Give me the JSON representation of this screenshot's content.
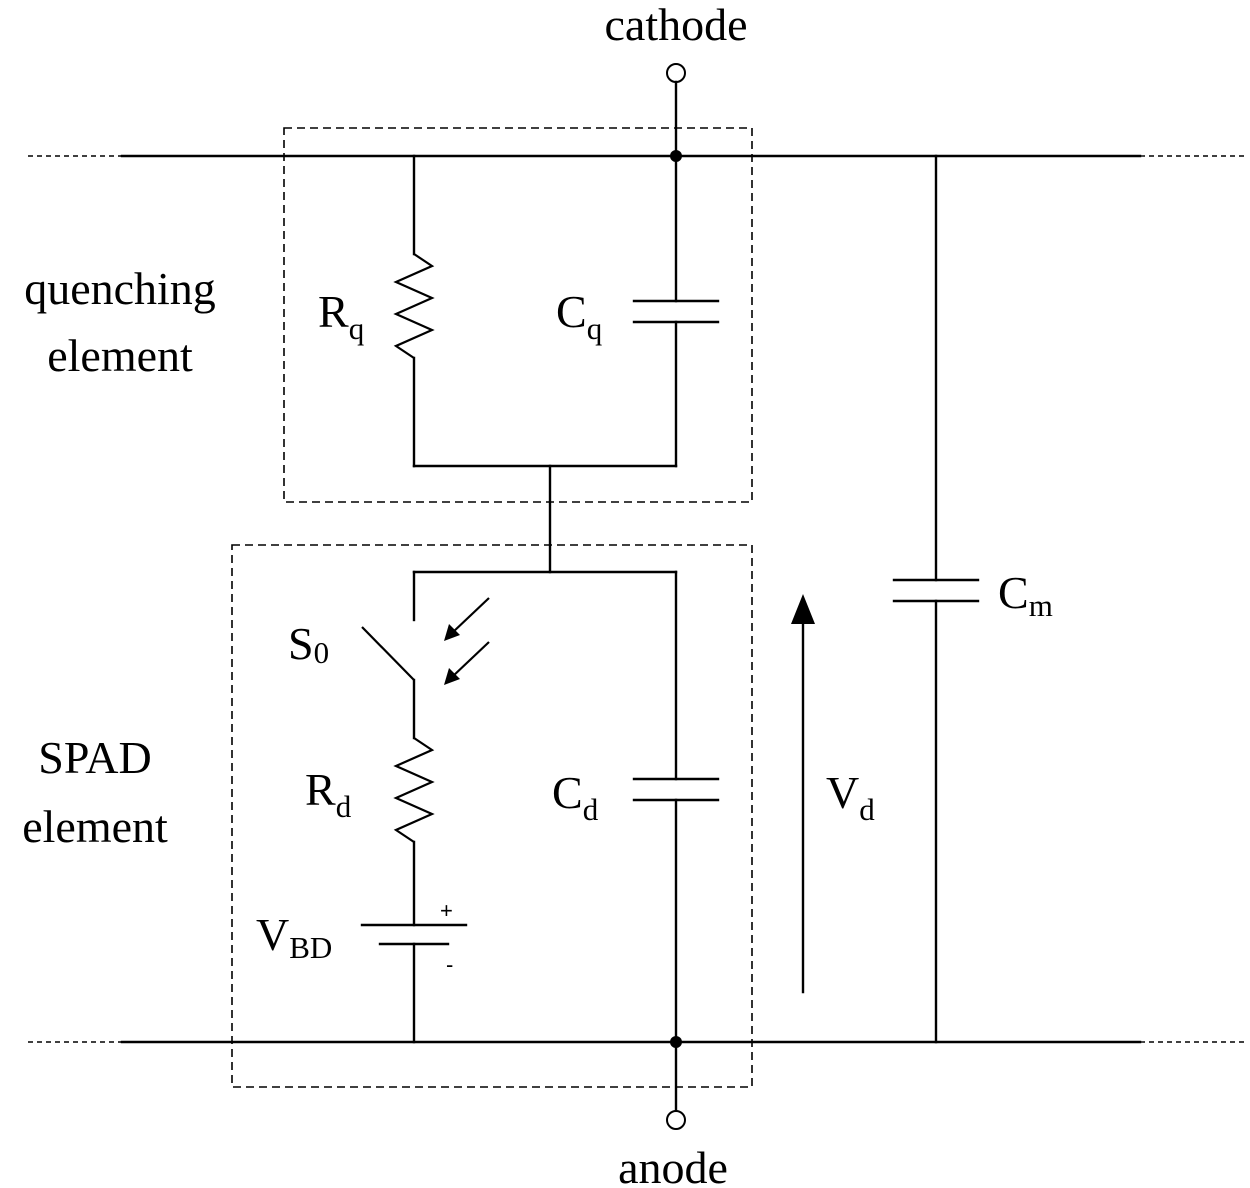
{
  "terminals": {
    "cathode": "cathode",
    "anode": "anode"
  },
  "blocks": {
    "quenching_line1": "quenching",
    "quenching_line2": "element",
    "spad_line1": "SPAD",
    "spad_line2": "element"
  },
  "components": {
    "rq": {
      "main": "R",
      "sub": "q"
    },
    "cq": {
      "main": "C",
      "sub": "q"
    },
    "cm": {
      "main": "C",
      "sub": "m"
    },
    "s0": {
      "main": "S",
      "sub": "0"
    },
    "rd": {
      "main": "R",
      "sub": "d"
    },
    "cd": {
      "main": "C",
      "sub": "d"
    },
    "vd": {
      "main": "V",
      "sub": "d"
    },
    "vbd": {
      "main": "V",
      "sub": "BD",
      "plus": "+",
      "minus": "-"
    }
  }
}
